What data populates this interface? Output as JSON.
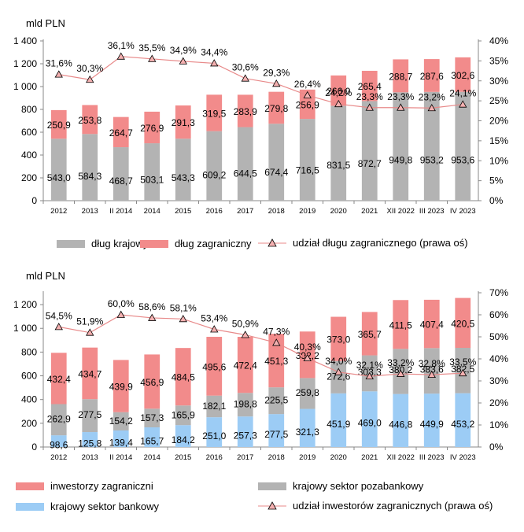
{
  "colors": {
    "domestic": "#b3b3b3",
    "foreign": "#f28b8b",
    "bank": "#9cccf5",
    "line": "#e88a8a",
    "marker": "#f4b0b0"
  },
  "chart_data": [
    {
      "type": "bar",
      "stacked": true,
      "unit": "mld PLN",
      "categories": [
        "2012",
        "2013",
        "II 2014",
        "2014",
        "2015",
        "2016",
        "2017",
        "2018",
        "2019",
        "2020",
        "2021",
        "XII 2022",
        "III 2023",
        "IV 2023"
      ],
      "ylim": [
        0,
        1400
      ],
      "yticks": [
        "0",
        "200",
        "400",
        "600",
        "800",
        "1 000",
        "1 200",
        "1 400"
      ],
      "y2lim": [
        0,
        40
      ],
      "y2ticks": [
        "0%",
        "5%",
        "10%",
        "15%",
        "20%",
        "25%",
        "30%",
        "35%",
        "40%"
      ],
      "series": [
        {
          "name": "dług krajowy",
          "values": [
            543.0,
            584.3,
            468.7,
            503.1,
            543.3,
            609.2,
            644.5,
            674.4,
            716.5,
            831.5,
            872.7,
            949.8,
            953.2,
            953.6
          ],
          "labels": [
            "543,0",
            "584,3",
            "468,7",
            "503,1",
            "543,3",
            "609,2",
            "644,5",
            "674,4",
            "716,5",
            "831,5",
            "872,7",
            "949,8",
            "953,2",
            "953,6"
          ]
        },
        {
          "name": "dług zagraniczny",
          "values": [
            250.9,
            253.8,
            264.7,
            276.9,
            291.3,
            319.5,
            283.9,
            279.8,
            256.9,
            266.0,
            265.4,
            288.7,
            287.6,
            302.6
          ],
          "labels": [
            "250,9",
            "253,8",
            "264,7",
            "276,9",
            "291,3",
            "319,5",
            "283,9",
            "279,8",
            "256,9",
            "266,0",
            "265,4",
            "288,7",
            "287,6",
            "302,6"
          ]
        }
      ],
      "line": {
        "name": "udział długu zagranicznego (prawa oś)",
        "values": [
          31.6,
          30.3,
          36.1,
          35.5,
          34.9,
          34.4,
          30.6,
          29.3,
          26.4,
          24.2,
          23.3,
          23.3,
          23.2,
          24.1
        ],
        "labels": [
          "31,6%",
          "30,3%",
          "36,1%",
          "35,5%",
          "34,9%",
          "34,4%",
          "30,6%",
          "29,3%",
          "26,4%",
          "24,2%",
          "23,3%",
          "23,3%",
          "23,2%",
          "24,1%"
        ]
      }
    },
    {
      "type": "bar",
      "stacked": true,
      "unit": "mld PLN",
      "categories": [
        "2012",
        "2013",
        "II 2014",
        "2014",
        "2015",
        "2016",
        "2017",
        "2018",
        "2019",
        "2020",
        "2021",
        "XII 2022",
        "III 2023",
        "IV 2023"
      ],
      "ylim": [
        0,
        1300
      ],
      "yticks": [
        "0",
        "200",
        "400",
        "600",
        "800",
        "1 000",
        "1 200"
      ],
      "y2lim": [
        0,
        70
      ],
      "y2ticks": [
        "0%",
        "10%",
        "20%",
        "30%",
        "40%",
        "50%",
        "60%",
        "70%"
      ],
      "series": [
        {
          "name": "krajowy sektor bankowy",
          "values": [
            98.6,
            125.8,
            139.4,
            165.7,
            184.2,
            251.0,
            257.3,
            277.5,
            321.3,
            451.9,
            469.0,
            446.8,
            449.9,
            453.2
          ],
          "labels": [
            "98,6",
            "125,8",
            "139,4",
            "165,7",
            "184,2",
            "251,0",
            "257,3",
            "277,5",
            "321,3",
            "451,9",
            "469,0",
            "446,8",
            "449,9",
            "453,2"
          ]
        },
        {
          "name": "krajowy sektor pozabankowy",
          "values": [
            262.9,
            277.5,
            154.2,
            157.3,
            165.9,
            182.1,
            198.8,
            225.5,
            259.8,
            272.6,
            303.3,
            380.2,
            383.6,
            382.5
          ],
          "labels": [
            "262,9",
            "277,5",
            "154,2",
            "157,3",
            "165,9",
            "182,1",
            "198,8",
            "225,5",
            "259,8",
            "272,6",
            "303,3",
            "380,2",
            "383,6",
            "382,5"
          ]
        },
        {
          "name": "inwestorzy zagraniczni",
          "values": [
            432.4,
            434.7,
            439.9,
            456.9,
            484.5,
            495.6,
            472.4,
            451.3,
            392.2,
            373.0,
            365.7,
            411.5,
            407.4,
            420.5
          ],
          "labels": [
            "432,4",
            "434,7",
            "439,9",
            "456,9",
            "484,5",
            "495,6",
            "472,4",
            "451,3",
            "392,2",
            "373,0",
            "365,7",
            "411,5",
            "407,4",
            "420,5"
          ]
        }
      ],
      "line": {
        "name": "udział inwestorów zagranicznych (prawa oś)",
        "values": [
          54.5,
          51.9,
          60.0,
          58.6,
          58.1,
          53.4,
          50.9,
          47.3,
          40.3,
          34.0,
          32.1,
          33.2,
          32.8,
          33.5
        ],
        "labels": [
          "54,5%",
          "51,9%",
          "60,0%",
          "58,6%",
          "58,1%",
          "53,4%",
          "50,9%",
          "47,3%",
          "40,3%",
          "34,0%",
          "32,1%",
          "33,2%",
          "32,8%",
          "33,5%"
        ]
      }
    }
  ],
  "legend1": {
    "domestic": "dług krajowy",
    "foreign": "dług zagraniczny",
    "share": "udział długu zagranicznego (prawa oś)"
  },
  "legend2": {
    "foreign": "inwestorzy zagraniczni",
    "nonbank": "krajowy sektor pozabankowy",
    "bank": "krajowy sektor bankowy",
    "share": "udział inwestorów zagranicznych (prawa oś)"
  }
}
